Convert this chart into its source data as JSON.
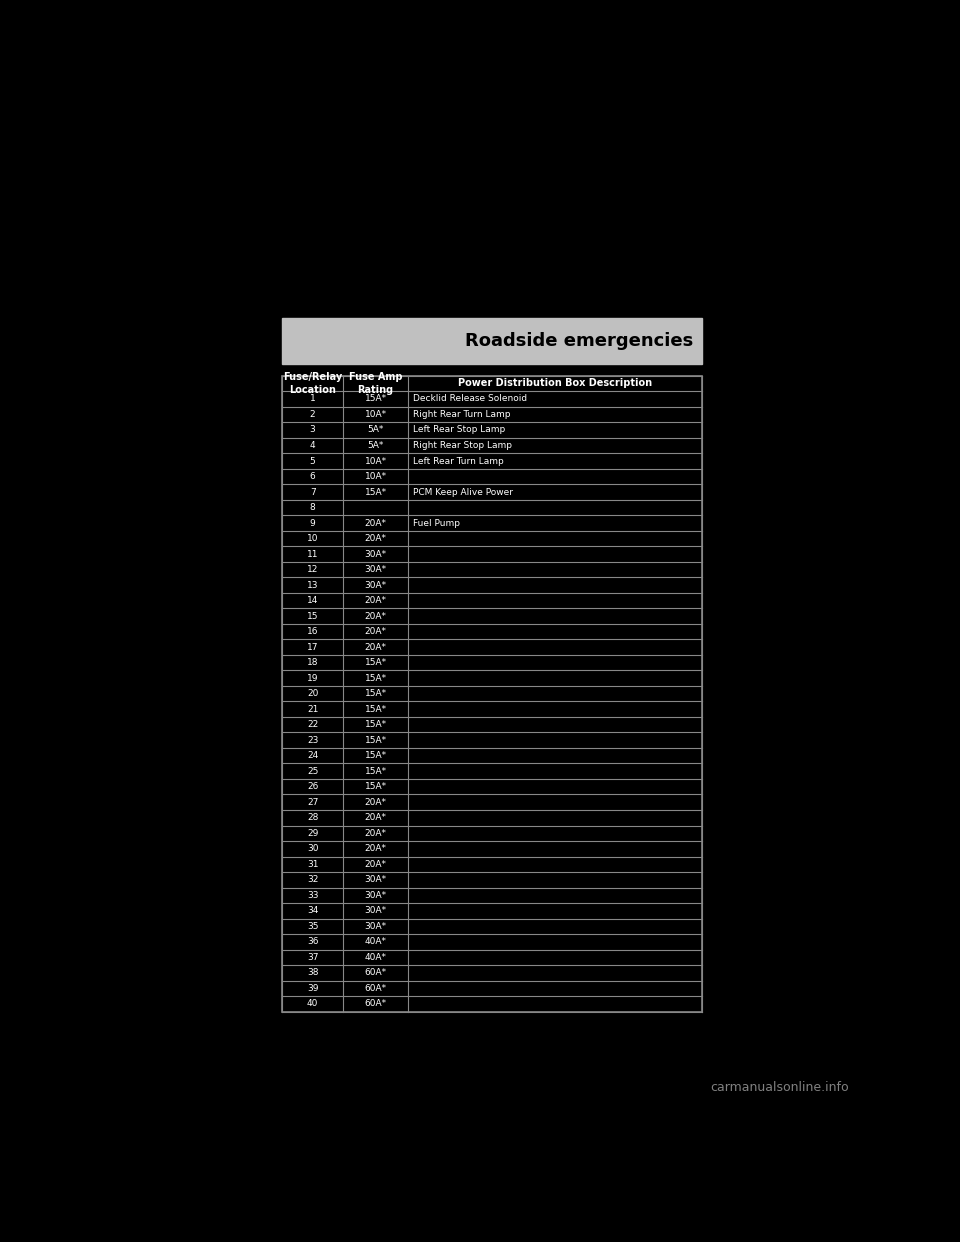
{
  "page_bg": "#000000",
  "header_bg": "#c0c0c0",
  "header_text": "Roadside emergencies",
  "header_text_color": "#000000",
  "table_bg": "#000000",
  "table_border_color": "#888888",
  "table_text_color": "#ffffff",
  "col_headers": [
    "Fuse/Relay\nLocation",
    "Fuse Amp\nRating",
    "Power Distribution Box Description"
  ],
  "rows": [
    [
      "1",
      "15A*",
      "Decklid Release Solenoid"
    ],
    [
      "2",
      "10A*",
      "Right Rear Turn Lamp"
    ],
    [
      "3",
      "5A*",
      "Left Rear Stop Lamp"
    ],
    [
      "4",
      "5A*",
      "Right Rear Stop Lamp"
    ],
    [
      "5",
      "10A*",
      "Left Rear Turn Lamp"
    ],
    [
      "6",
      "10A*",
      ""
    ],
    [
      "7",
      "15A*",
      "PCM Keep Alive Power"
    ],
    [
      "8",
      "",
      ""
    ],
    [
      "9",
      "20A*",
      "Fuel Pump"
    ],
    [
      "10",
      "20A*",
      ""
    ],
    [
      "11",
      "30A*",
      ""
    ],
    [
      "12",
      "30A*",
      ""
    ],
    [
      "13",
      "30A*",
      ""
    ],
    [
      "14",
      "20A*",
      ""
    ],
    [
      "15",
      "20A*",
      ""
    ],
    [
      "16",
      "20A*",
      ""
    ],
    [
      "17",
      "20A*",
      ""
    ],
    [
      "18",
      "15A*",
      ""
    ],
    [
      "19",
      "15A*",
      ""
    ],
    [
      "20",
      "15A*",
      ""
    ],
    [
      "21",
      "15A*",
      ""
    ],
    [
      "22",
      "15A*",
      ""
    ],
    [
      "23",
      "15A*",
      ""
    ],
    [
      "24",
      "15A*",
      ""
    ],
    [
      "25",
      "15A*",
      ""
    ],
    [
      "26",
      "15A*",
      ""
    ],
    [
      "27",
      "20A*",
      ""
    ],
    [
      "28",
      "20A*",
      ""
    ],
    [
      "29",
      "20A*",
      ""
    ],
    [
      "30",
      "20A*",
      ""
    ],
    [
      "31",
      "20A*",
      ""
    ],
    [
      "32",
      "30A*",
      ""
    ],
    [
      "33",
      "30A*",
      ""
    ],
    [
      "34",
      "30A*",
      ""
    ],
    [
      "35",
      "30A*",
      ""
    ],
    [
      "36",
      "40A*",
      ""
    ],
    [
      "37",
      "40A*",
      ""
    ],
    [
      "38",
      "60A*",
      ""
    ],
    [
      "39",
      "60A*",
      ""
    ],
    [
      "40",
      "60A*",
      ""
    ]
  ],
  "watermark_text": "carmanualsonline.info",
  "watermark_color": "#808080"
}
